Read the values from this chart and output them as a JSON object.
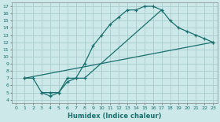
{
  "bg_color": "#cce8e8",
  "grid_color": "#b0d8d8",
  "line_color": "#1a7070",
  "xlabel": "Humidex (Indice chaleur)",
  "xlim": [
    -0.5,
    23.5
  ],
  "ylim": [
    3.5,
    17.5
  ],
  "xticks": [
    0,
    1,
    2,
    3,
    4,
    5,
    6,
    7,
    8,
    9,
    10,
    11,
    12,
    13,
    14,
    15,
    16,
    17,
    18,
    19,
    20,
    21,
    22,
    23
  ],
  "yticks": [
    4,
    5,
    6,
    7,
    8,
    9,
    10,
    11,
    12,
    13,
    14,
    15,
    16,
    17
  ],
  "line1_x": [
    1,
    2,
    3,
    4,
    5,
    6,
    7,
    8,
    9,
    10,
    11,
    12,
    13,
    14,
    15,
    16,
    17
  ],
  "line1_y": [
    7,
    7,
    5,
    5,
    5,
    7,
    7,
    9,
    11.5,
    13,
    14.5,
    15.5,
    16.5,
    16.5,
    17,
    17,
    16.5
  ],
  "line2_x": [
    1,
    23
  ],
  "line2_y": [
    7,
    12
  ],
  "line3_x": [
    3,
    4,
    5,
    6,
    7,
    8,
    17,
    18,
    19,
    20,
    21,
    22,
    23
  ],
  "line3_y": [
    5,
    4.5,
    5,
    6.5,
    7,
    7,
    16.5,
    15,
    14,
    13.5,
    13,
    12.5,
    12
  ]
}
